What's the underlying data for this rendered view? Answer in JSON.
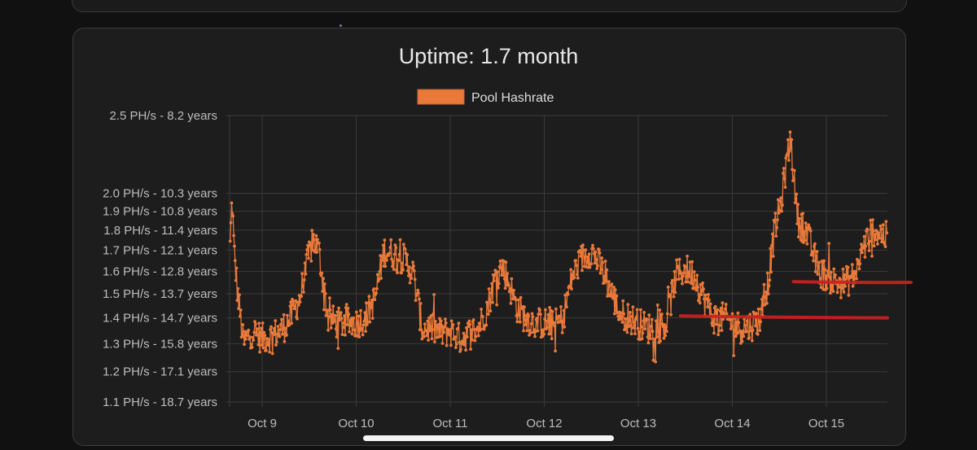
{
  "chart_data": {
    "type": "line",
    "title": "Uptime: 1.7 month",
    "legend": {
      "placement": "top-center",
      "entries": [
        {
          "name": "Pool Hashrate",
          "color": "#e8793a"
        }
      ]
    },
    "grid": true,
    "ylim": [
      1.1,
      2.5
    ],
    "yscale": "log",
    "yticks": [
      {
        "value": 2.5,
        "label": "2.5 PH/s - 8.2 years"
      },
      {
        "value": 2.0,
        "label": "2.0 PH/s - 10.3 years"
      },
      {
        "value": 1.9,
        "label": "1.9 PH/s - 10.8 years"
      },
      {
        "value": 1.8,
        "label": "1.8 PH/s - 11.4 years"
      },
      {
        "value": 1.7,
        "label": "1.7 PH/s - 12.1 years"
      },
      {
        "value": 1.6,
        "label": "1.6 PH/s - 12.8 years"
      },
      {
        "value": 1.5,
        "label": "1.5 PH/s - 13.7 years"
      },
      {
        "value": 1.4,
        "label": "1.4 PH/s - 14.7 years"
      },
      {
        "value": 1.3,
        "label": "1.3 PH/s - 15.8 years"
      },
      {
        "value": 1.2,
        "label": "1.2 PH/s - 17.1 years"
      },
      {
        "value": 1.1,
        "label": "1.1 PH/s - 18.7 years"
      }
    ],
    "xlim": [
      8.65,
      15.65
    ],
    "xticks": [
      {
        "value": 9,
        "label": "Oct 9"
      },
      {
        "value": 10,
        "label": "Oct 10"
      },
      {
        "value": 11,
        "label": "Oct 11"
      },
      {
        "value": 12,
        "label": "Oct 12"
      },
      {
        "value": 13,
        "label": "Oct 13"
      },
      {
        "value": 14,
        "label": "Oct 14"
      },
      {
        "value": 15,
        "label": "Oct 15"
      }
    ],
    "series": [
      {
        "name": "Pool Hashrate",
        "color": "#e8793a",
        "keypoints": [
          [
            8.66,
            1.72
          ],
          [
            8.68,
            1.98
          ],
          [
            8.7,
            1.7
          ],
          [
            8.74,
            1.5
          ],
          [
            8.8,
            1.3
          ],
          [
            8.9,
            1.35
          ],
          [
            9.0,
            1.32
          ],
          [
            9.1,
            1.33
          ],
          [
            9.2,
            1.35
          ],
          [
            9.3,
            1.4
          ],
          [
            9.4,
            1.48
          ],
          [
            9.5,
            1.68
          ],
          [
            9.55,
            1.75
          ],
          [
            9.6,
            1.7
          ],
          [
            9.65,
            1.55
          ],
          [
            9.7,
            1.4
          ],
          [
            9.8,
            1.38
          ],
          [
            9.9,
            1.38
          ],
          [
            10.0,
            1.38
          ],
          [
            10.1,
            1.4
          ],
          [
            10.2,
            1.48
          ],
          [
            10.3,
            1.7
          ],
          [
            10.4,
            1.68
          ],
          [
            10.5,
            1.66
          ],
          [
            10.6,
            1.6
          ],
          [
            10.7,
            1.36
          ],
          [
            10.8,
            1.36
          ],
          [
            10.9,
            1.34
          ],
          [
            11.0,
            1.35
          ],
          [
            11.1,
            1.32
          ],
          [
            11.2,
            1.34
          ],
          [
            11.3,
            1.36
          ],
          [
            11.4,
            1.45
          ],
          [
            11.5,
            1.6
          ],
          [
            11.55,
            1.62
          ],
          [
            11.6,
            1.58
          ],
          [
            11.7,
            1.45
          ],
          [
            11.8,
            1.4
          ],
          [
            11.9,
            1.38
          ],
          [
            12.0,
            1.38
          ],
          [
            12.1,
            1.37
          ],
          [
            12.2,
            1.4
          ],
          [
            12.3,
            1.58
          ],
          [
            12.4,
            1.66
          ],
          [
            12.5,
            1.7
          ],
          [
            12.6,
            1.62
          ],
          [
            12.7,
            1.52
          ],
          [
            12.8,
            1.42
          ],
          [
            12.9,
            1.4
          ],
          [
            13.0,
            1.38
          ],
          [
            13.1,
            1.36
          ],
          [
            13.2,
            1.36
          ],
          [
            13.3,
            1.38
          ],
          [
            13.4,
            1.58
          ],
          [
            13.5,
            1.61
          ],
          [
            13.6,
            1.58
          ],
          [
            13.7,
            1.48
          ],
          [
            13.8,
            1.4
          ],
          [
            13.9,
            1.4
          ],
          [
            14.0,
            1.38
          ],
          [
            14.1,
            1.36
          ],
          [
            14.2,
            1.37
          ],
          [
            14.3,
            1.4
          ],
          [
            14.38,
            1.55
          ],
          [
            14.45,
            1.8
          ],
          [
            14.52,
            1.95
          ],
          [
            14.58,
            2.2
          ],
          [
            14.62,
            2.35
          ],
          [
            14.66,
            2.05
          ],
          [
            14.7,
            1.85
          ],
          [
            14.78,
            1.8
          ],
          [
            14.85,
            1.7
          ],
          [
            14.92,
            1.6
          ],
          [
            15.0,
            1.58
          ],
          [
            15.1,
            1.55
          ],
          [
            15.2,
            1.55
          ],
          [
            15.3,
            1.58
          ],
          [
            15.4,
            1.72
          ],
          [
            15.5,
            1.8
          ],
          [
            15.6,
            1.78
          ],
          [
            15.65,
            1.76
          ]
        ]
      }
    ],
    "annotations": [
      {
        "type": "hand-drawn-line",
        "color": "#cc1f1f",
        "x": [
          13.45,
          15.65
        ],
        "y": [
          1.408,
          1.4
        ]
      },
      {
        "type": "hand-drawn-line",
        "color": "#cc1f1f",
        "x": [
          14.65,
          15.9
        ],
        "y": [
          1.553,
          1.55
        ]
      }
    ]
  }
}
